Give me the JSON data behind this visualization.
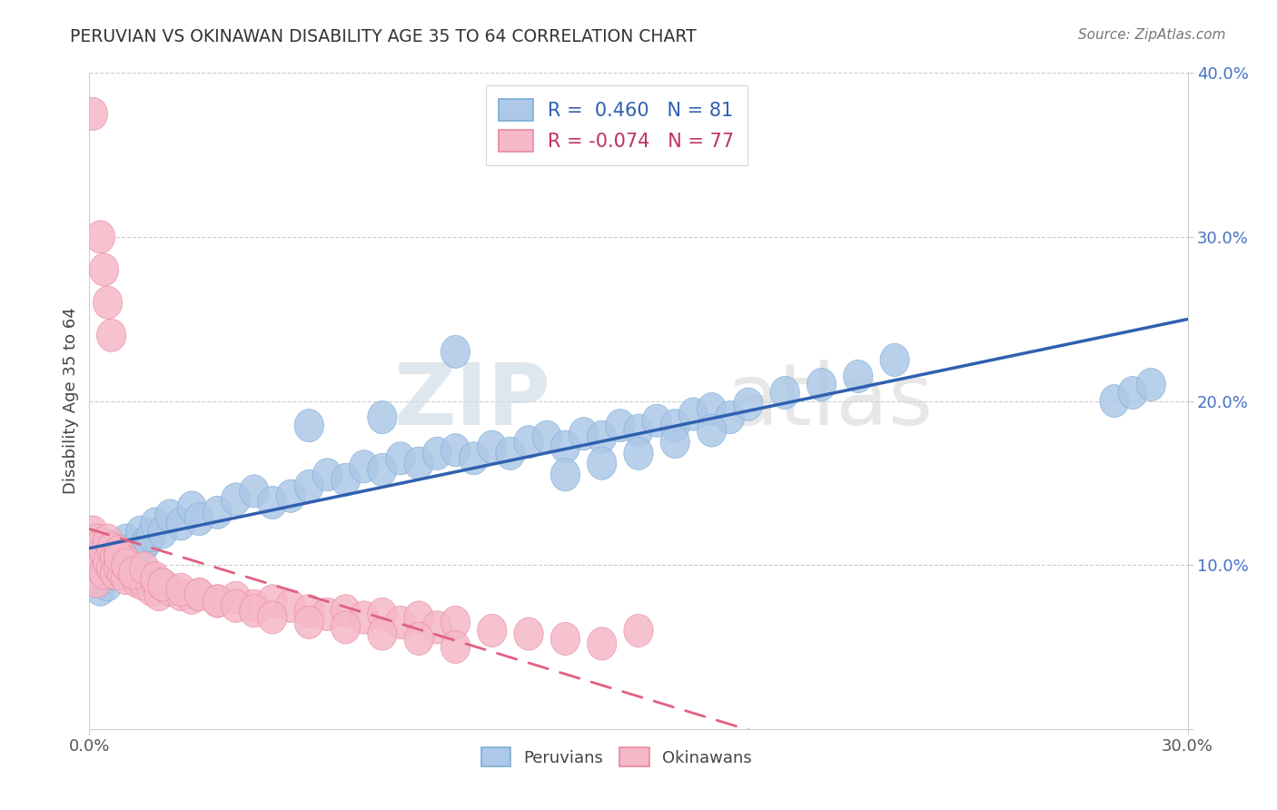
{
  "title": "PERUVIAN VS OKINAWAN DISABILITY AGE 35 TO 64 CORRELATION CHART",
  "source": "Source: ZipAtlas.com",
  "ylabel": "Disability Age 35 to 64",
  "xlim": [
    0.0,
    0.3
  ],
  "ylim": [
    0.0,
    0.4
  ],
  "xticks": [
    0.0,
    0.3
  ],
  "yticks": [
    0.1,
    0.2,
    0.3,
    0.4
  ],
  "peruvian_color": "#adc8e8",
  "peruvian_edge": "#7aadd4",
  "okinawan_color": "#f5b8c8",
  "okinawan_edge": "#e888a0",
  "peruvian_line_color": "#3060b0",
  "okinawan_line_color": "#e06080",
  "R_peruvian": 0.46,
  "N_peruvian": 81,
  "R_okinawan": -0.074,
  "N_okinawan": 77,
  "watermark_zip": "ZIP",
  "watermark_atlas": "atlas",
  "grid_color": "#cccccc",
  "peruvian_x": [
    0.001,
    0.001,
    0.001,
    0.002,
    0.002,
    0.002,
    0.003,
    0.003,
    0.003,
    0.004,
    0.004,
    0.005,
    0.005,
    0.005,
    0.006,
    0.006,
    0.007,
    0.007,
    0.008,
    0.008,
    0.009,
    0.01,
    0.01,
    0.011,
    0.012,
    0.013,
    0.014,
    0.015,
    0.016,
    0.017,
    0.018,
    0.02,
    0.022,
    0.025,
    0.028,
    0.03,
    0.035,
    0.04,
    0.045,
    0.05,
    0.055,
    0.06,
    0.065,
    0.07,
    0.075,
    0.08,
    0.085,
    0.09,
    0.095,
    0.1,
    0.105,
    0.11,
    0.115,
    0.12,
    0.125,
    0.13,
    0.135,
    0.14,
    0.145,
    0.15,
    0.155,
    0.16,
    0.165,
    0.17,
    0.175,
    0.18,
    0.19,
    0.2,
    0.21,
    0.22,
    0.13,
    0.14,
    0.15,
    0.16,
    0.17,
    0.28,
    0.285,
    0.29,
    0.06,
    0.08,
    0.1
  ],
  "peruvian_y": [
    0.095,
    0.105,
    0.11,
    0.09,
    0.1,
    0.115,
    0.085,
    0.095,
    0.108,
    0.092,
    0.1,
    0.088,
    0.098,
    0.112,
    0.105,
    0.095,
    0.1,
    0.11,
    0.095,
    0.105,
    0.1,
    0.108,
    0.115,
    0.105,
    0.11,
    0.108,
    0.12,
    0.112,
    0.115,
    0.118,
    0.125,
    0.12,
    0.13,
    0.125,
    0.135,
    0.128,
    0.132,
    0.14,
    0.145,
    0.138,
    0.142,
    0.148,
    0.155,
    0.152,
    0.16,
    0.158,
    0.165,
    0.162,
    0.168,
    0.17,
    0.165,
    0.172,
    0.168,
    0.175,
    0.178,
    0.172,
    0.18,
    0.178,
    0.185,
    0.182,
    0.188,
    0.185,
    0.192,
    0.195,
    0.19,
    0.198,
    0.205,
    0.21,
    0.215,
    0.225,
    0.155,
    0.162,
    0.168,
    0.175,
    0.182,
    0.2,
    0.205,
    0.21,
    0.185,
    0.19,
    0.23
  ],
  "okinawan_x": [
    0.001,
    0.001,
    0.001,
    0.001,
    0.002,
    0.002,
    0.002,
    0.003,
    0.003,
    0.004,
    0.004,
    0.005,
    0.005,
    0.006,
    0.006,
    0.007,
    0.007,
    0.008,
    0.008,
    0.009,
    0.009,
    0.01,
    0.01,
    0.011,
    0.012,
    0.013,
    0.014,
    0.015,
    0.016,
    0.017,
    0.018,
    0.019,
    0.02,
    0.022,
    0.025,
    0.028,
    0.03,
    0.035,
    0.04,
    0.045,
    0.05,
    0.055,
    0.06,
    0.065,
    0.07,
    0.075,
    0.08,
    0.085,
    0.09,
    0.095,
    0.1,
    0.11,
    0.12,
    0.13,
    0.14,
    0.15,
    0.008,
    0.01,
    0.012,
    0.015,
    0.018,
    0.02,
    0.025,
    0.03,
    0.035,
    0.04,
    0.045,
    0.05,
    0.06,
    0.07,
    0.08,
    0.09,
    0.1,
    0.003,
    0.004,
    0.005,
    0.006
  ],
  "okinawan_y": [
    0.375,
    0.12,
    0.105,
    0.095,
    0.115,
    0.1,
    0.09,
    0.112,
    0.098,
    0.108,
    0.095,
    0.115,
    0.102,
    0.098,
    0.11,
    0.105,
    0.095,
    0.108,
    0.098,
    0.105,
    0.095,
    0.102,
    0.092,
    0.098,
    0.095,
    0.09,
    0.092,
    0.088,
    0.092,
    0.085,
    0.09,
    0.082,
    0.088,
    0.085,
    0.082,
    0.08,
    0.082,
    0.078,
    0.08,
    0.075,
    0.078,
    0.075,
    0.072,
    0.07,
    0.072,
    0.068,
    0.07,
    0.065,
    0.068,
    0.062,
    0.065,
    0.06,
    0.058,
    0.055,
    0.052,
    0.06,
    0.105,
    0.1,
    0.095,
    0.098,
    0.092,
    0.088,
    0.085,
    0.082,
    0.078,
    0.075,
    0.072,
    0.068,
    0.065,
    0.062,
    0.058,
    0.055,
    0.05,
    0.3,
    0.28,
    0.26,
    0.24
  ]
}
